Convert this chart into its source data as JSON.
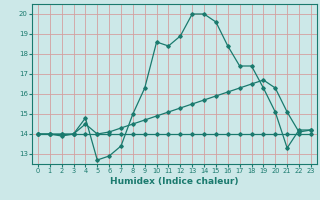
{
  "xlabel": "Humidex (Indice chaleur)",
  "ylabel": "",
  "xlim": [
    -0.5,
    23.5
  ],
  "ylim": [
    12.5,
    20.5
  ],
  "xticks": [
    0,
    1,
    2,
    3,
    4,
    5,
    6,
    7,
    8,
    9,
    10,
    11,
    12,
    13,
    14,
    15,
    16,
    17,
    18,
    19,
    20,
    21,
    22,
    23
  ],
  "yticks": [
    13,
    14,
    15,
    16,
    17,
    18,
    19,
    20
  ],
  "bg_color": "#cce8e8",
  "grid_color": "#d4a0a0",
  "line_color": "#1a7a6e",
  "line1_x": [
    0,
    1,
    2,
    3,
    4,
    5,
    6,
    7,
    8,
    9,
    10,
    11,
    12,
    13,
    14,
    15,
    16,
    17,
    18,
    19,
    20,
    21,
    22,
    23
  ],
  "line1_y": [
    14,
    14,
    14,
    14,
    14,
    14,
    14,
    14,
    14,
    14,
    14,
    14,
    14,
    14,
    14,
    14,
    14,
    14,
    14,
    14,
    14,
    14,
    14,
    14
  ],
  "line2_x": [
    0,
    1,
    2,
    3,
    4,
    5,
    6,
    7,
    8,
    9,
    10,
    11,
    12,
    13,
    14,
    15,
    16,
    17,
    18,
    19,
    20,
    21,
    22,
    23
  ],
  "line2_y": [
    14,
    14,
    14,
    14,
    14.5,
    14.0,
    14.1,
    14.3,
    14.5,
    14.7,
    14.9,
    15.1,
    15.3,
    15.5,
    15.7,
    15.9,
    16.1,
    16.3,
    16.5,
    16.7,
    16.3,
    15.1,
    14.1,
    14.2
  ],
  "line3_x": [
    0,
    1,
    2,
    3,
    4,
    5,
    6,
    7,
    8,
    9,
    10,
    11,
    12,
    13,
    14,
    15,
    16,
    17,
    18,
    19,
    20,
    21,
    22,
    23
  ],
  "line3_y": [
    14,
    14,
    13.9,
    14,
    14.8,
    12.7,
    12.9,
    13.4,
    15.0,
    16.3,
    18.6,
    18.4,
    18.9,
    20.0,
    20.0,
    19.6,
    18.4,
    17.4,
    17.4,
    16.3,
    15.1,
    13.3,
    14.2,
    14.2
  ]
}
